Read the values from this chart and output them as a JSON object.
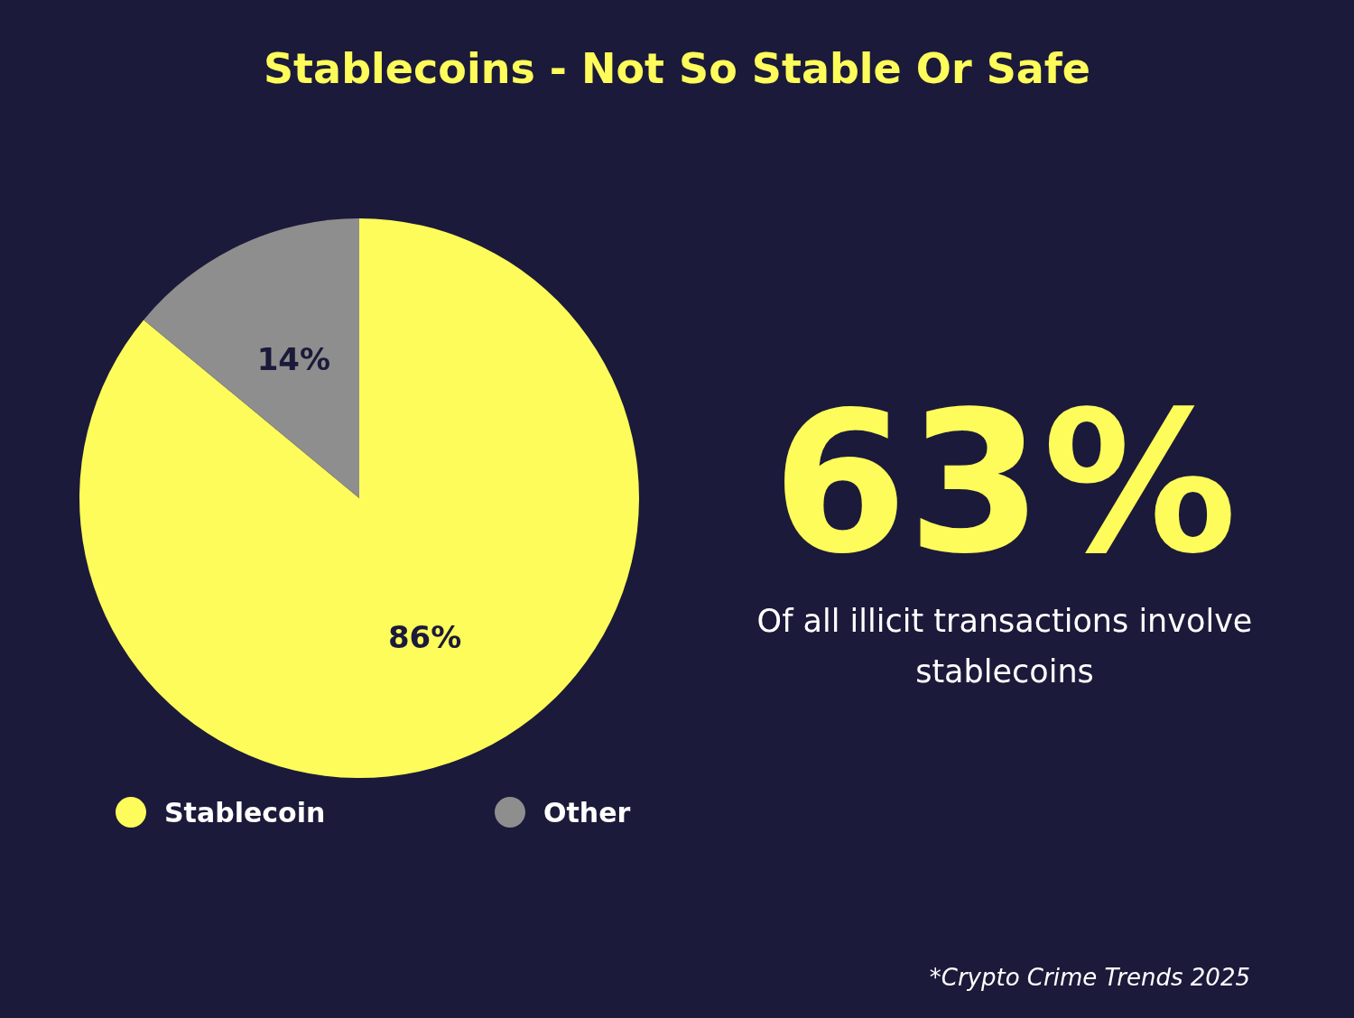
{
  "chart_data": {
    "type": "pie",
    "title": "Stablecoins - Not So Stable Or Safe",
    "categories": [
      "Stablecoin",
      "Other"
    ],
    "values": [
      86,
      14
    ],
    "colors": [
      "#fefc5a",
      "#8e8e8e"
    ],
    "value_labels": [
      "86%",
      "14%"
    ],
    "legend": "bottom",
    "annotations": [
      "63%",
      "Of all illicit transactions involve stablecoins",
      "*Crypto Crime Trends 2025"
    ]
  }
}
